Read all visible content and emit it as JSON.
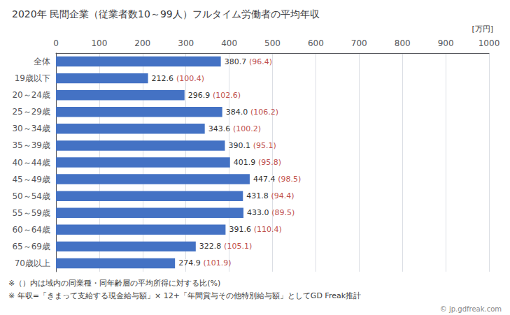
{
  "chart_data": {
    "type": "bar",
    "orientation": "horizontal",
    "title": "2020年 民間企業（従業者数10～99人）フルタイム労働者の平均年収",
    "xlabel": "[万円]",
    "categories": [
      "全体",
      "19歳以下",
      "20～24歳",
      "25～29歳",
      "30～34歳",
      "35～39歳",
      "40～44歳",
      "45～49歳",
      "50～54歳",
      "55～59歳",
      "60～64歳",
      "65～69歳",
      "70歳以上"
    ],
    "values": [
      380.7,
      212.6,
      296.9,
      384.0,
      343.6,
      390.1,
      401.9,
      447.4,
      431.8,
      433.0,
      391.6,
      322.8,
      274.9
    ],
    "value_labels": [
      "380.7",
      "212.6",
      "296.9",
      "384.0",
      "343.6",
      "390.1",
      "401.9",
      "447.4",
      "431.8",
      "433.0",
      "391.6",
      "322.8",
      "274.9"
    ],
    "ratios": {
      "values": [
        96.4,
        100.4,
        102.6,
        106.2,
        100.2,
        95.1,
        95.8,
        98.5,
        94.4,
        89.5,
        110.4,
        105.1,
        101.9
      ],
      "color": "#C0504D"
    },
    "color": "#4472C4",
    "xlim": [
      0,
      1000
    ],
    "xticks": [
      0,
      100,
      200,
      300,
      400,
      500,
      600,
      700,
      800,
      900,
      1000
    ],
    "grid": true,
    "data_labels": true,
    "annotations": [
      "※（）内は域内の同業種・同年齢層の平均所得に対する比(%)",
      "※ 年収=「きまって支給する現金給与額」× 12+「年間賞与その他特別給与額」としてGD Freak推計",
      "© jp.gdfreak.com"
    ]
  }
}
